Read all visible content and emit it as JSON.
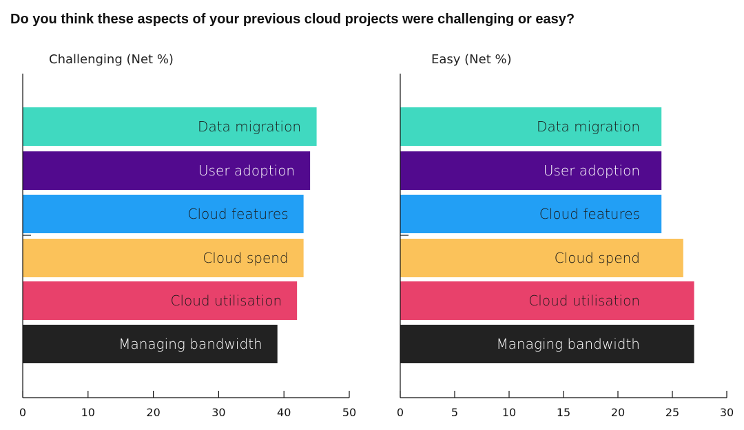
{
  "title": "Do you think these aspects of your previous cloud projects were challenging or easy?",
  "chart_data": [
    {
      "type": "bar",
      "orientation": "horizontal",
      "title": "Challenging (Net %)",
      "categories": [
        "Data migration",
        "User adoption",
        "Cloud features",
        "Cloud spend",
        "Cloud utilisation",
        "Managing bandwidth"
      ],
      "values": [
        45,
        44,
        43,
        43,
        42,
        39
      ],
      "colors": [
        "#40D9C0",
        "#520A8E",
        "#229FF5",
        "#FBC25A",
        "#E8416B",
        "#222222"
      ],
      "label_colors": [
        "#1a1a1a",
        "#ffffff",
        "#1a1a1a",
        "#1a1a1a",
        "#1a1a1a",
        "#ffffff"
      ],
      "xlim": [
        0,
        50
      ],
      "ticks": [
        0,
        10,
        20,
        30,
        40,
        50
      ],
      "grid": false
    },
    {
      "type": "bar",
      "orientation": "horizontal",
      "title": "Easy (Net %)",
      "categories": [
        "Data migration",
        "User adoption",
        "Cloud features",
        "Cloud spend",
        "Cloud utilisation",
        "Managing bandwidth"
      ],
      "values": [
        24,
        24,
        24,
        26,
        27,
        27
      ],
      "colors": [
        "#40D9C0",
        "#520A8E",
        "#229FF5",
        "#FBC25A",
        "#E8416B",
        "#222222"
      ],
      "label_colors": [
        "#1a1a1a",
        "#ffffff",
        "#1a1a1a",
        "#1a1a1a",
        "#1a1a1a",
        "#ffffff"
      ],
      "xlim": [
        0,
        30
      ],
      "ticks": [
        0,
        5,
        10,
        15,
        20,
        25,
        30
      ],
      "grid": false
    }
  ]
}
